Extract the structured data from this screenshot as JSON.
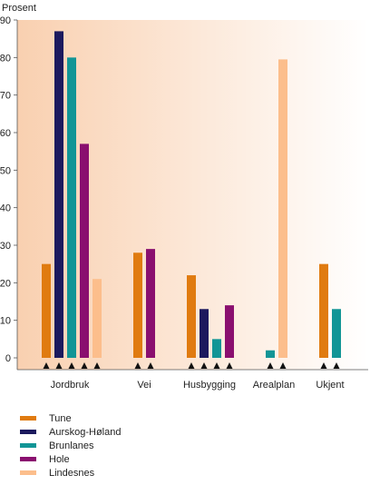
{
  "chart_data": {
    "type": "bar",
    "ylabel": "Prosent",
    "ylim": [
      0,
      90
    ],
    "yticks": [
      0,
      10,
      20,
      30,
      40,
      50,
      60,
      70,
      80,
      90
    ],
    "grid": false,
    "background_gradient": [
      "#f9d0b0",
      "#ffffff"
    ],
    "categories": [
      "Jordbruk",
      "Vei",
      "Husbygging",
      "Arealplan",
      "Ukjent"
    ],
    "series": [
      {
        "name": "Tune",
        "color": "#e07b10",
        "values": [
          25,
          28,
          22,
          0,
          25
        ]
      },
      {
        "name": "Aurskog-Høland",
        "color": "#1c1a5e",
        "values": [
          87,
          0,
          13,
          0,
          0
        ]
      },
      {
        "name": "Brunlanes",
        "color": "#119596",
        "values": [
          80,
          0,
          5,
          2,
          13
        ]
      },
      {
        "name": "Hole",
        "color": "#8a0f6f",
        "values": [
          57,
          29,
          14,
          0,
          0
        ]
      },
      {
        "name": "Lindesnes",
        "color": "#fcbe8c",
        "values": [
          21,
          0,
          0,
          79.5,
          0
        ]
      }
    ],
    "legend_placement": "bottom-left"
  }
}
